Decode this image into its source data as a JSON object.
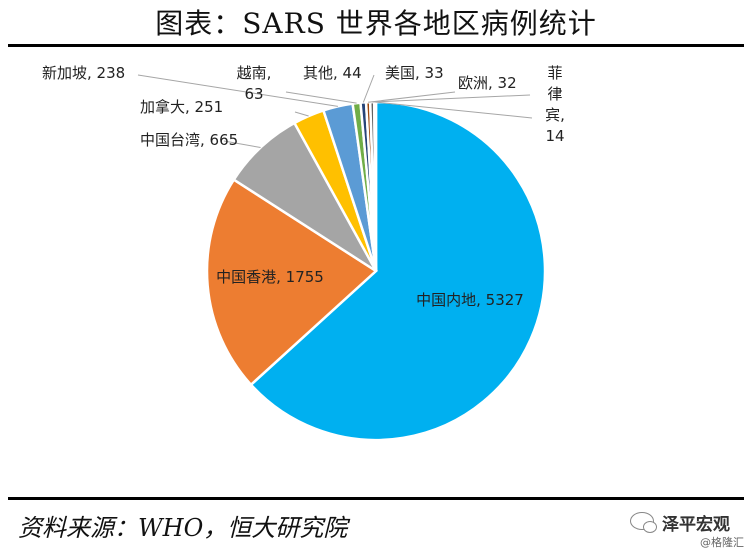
{
  "title": "图表：SARS 世界各地区病例统计",
  "source": "资料来源：WHO，恒大研究院",
  "watermark": {
    "name": "泽平宏观",
    "sub": "@格隆汇"
  },
  "chart_data": {
    "type": "pie",
    "categories": [
      "中国内地",
      "中国香港",
      "中国台湾",
      "加拿大",
      "新加坡",
      "越南",
      "其他",
      "美国",
      "欧洲",
      "菲律宾"
    ],
    "values": [
      5327,
      1755,
      665,
      251,
      238,
      63,
      44,
      33,
      32,
      14
    ],
    "colors": [
      "#00b0f0",
      "#ed7d31",
      "#a5a5a5",
      "#ffc000",
      "#5b9bd5",
      "#70ad47",
      "#264478",
      "#9e480e",
      "#636363",
      "#997300"
    ],
    "labels": [
      [
        "中国内地, 5327"
      ],
      [
        "中国香港, 1755"
      ],
      [
        "中国台湾, 665"
      ],
      [
        "加拿大, 251"
      ],
      [
        "新加坡, 238"
      ],
      [
        "越南,",
        "63"
      ],
      [
        "其他, 44"
      ],
      [
        "美国, 33"
      ],
      [
        "欧洲, 32"
      ],
      [
        "菲",
        "律",
        "宾,",
        "14"
      ]
    ],
    "start_angle_deg": 0,
    "direction": "clockwise",
    "legend": "none"
  }
}
